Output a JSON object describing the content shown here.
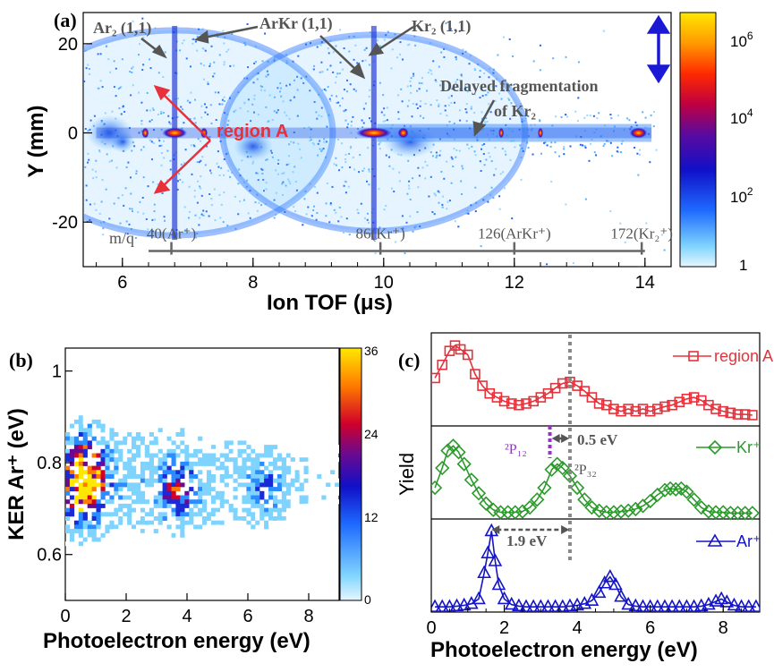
{
  "chart_data": [
    {
      "id": "a",
      "type": "heatmap",
      "panel_label": "(a)",
      "xlabel": "Ion TOF (μs)",
      "ylabel": "Y (mm)",
      "xlim": [
        5.4,
        14.4
      ],
      "ylim": [
        -30,
        27
      ],
      "xticks": [
        "6",
        "8",
        "10",
        "12",
        "14"
      ],
      "yticks": [
        "20",
        "0",
        "-20"
      ],
      "colorbar": {
        "scale": "log",
        "range": [
          1,
          5000000
        ],
        "ticks": [
          "1",
          "10^2",
          "10^4",
          "10^6"
        ]
      },
      "annotations": {
        "ar2": "Ar₂ (1,1)",
        "arkr": "ArKr (1,1)",
        "kr2": "Kr₂ (1,1)",
        "delayed_1": "Delayed fragmentation",
        "delayed_2": "of Kr₂",
        "region": "region A"
      },
      "mq_scale": {
        "prefix": "m/q",
        "entries": [
          {
            "mass": 40,
            "label": "40(Ar⁺)",
            "tof": 6.75
          },
          {
            "mass": 86,
            "label": "86(Kr⁺)",
            "tof": 9.95
          },
          {
            "mass": 126,
            "label": "126(ArKr⁺)",
            "tof": 12.0
          },
          {
            "mass": 172,
            "label": "172(Kr₂⁺)",
            "tof": 13.95
          }
        ]
      },
      "features": [
        {
          "name": "Ar2 ring",
          "center_tof": 6.8,
          "radius_mm": 23
        },
        {
          "name": "Kr2/ArKr ring",
          "center_tof": 9.85,
          "radius_mm": 22
        },
        {
          "name": "Ar+ line",
          "tof": 6.8
        },
        {
          "name": "Kr+ line",
          "tof": 9.85
        },
        {
          "name": "delayed fragmentation tail",
          "tof_range": [
            9.9,
            14.1
          ]
        }
      ]
    },
    {
      "id": "b",
      "type": "heatmap",
      "panel_label": "(b)",
      "xlabel": "Photoelectron energy (eV)",
      "ylabel": "KER Ar⁺ (eV)",
      "xlim": [
        0,
        9
      ],
      "ylim": [
        0.5,
        1.05
      ],
      "xticks": [
        "0",
        "2",
        "4",
        "6",
        "8"
      ],
      "yticks": [
        "1",
        "0.8",
        "0.6"
      ],
      "colorbar": {
        "scale": "linear",
        "range": [
          0,
          36
        ],
        "ticks": [
          "0",
          "12",
          "24",
          "36"
        ]
      },
      "hotspots": [
        {
          "x": 0.55,
          "y": 0.74,
          "value": 36
        },
        {
          "x": 0.75,
          "y": 0.8,
          "value": 22
        },
        {
          "x": 3.7,
          "y": 0.74,
          "value": 18
        },
        {
          "x": 6.6,
          "y": 0.75,
          "value": 10
        }
      ]
    },
    {
      "id": "c",
      "type": "line",
      "panel_label": "(c)",
      "xlabel": "Photoelectron energy (eV)",
      "ylabel": "Yield",
      "xlim": [
        0,
        9
      ],
      "xticks": [
        "0",
        "2",
        "4",
        "6",
        "8"
      ],
      "series": [
        {
          "name": "region A",
          "color": "#e8303a",
          "marker": "square",
          "x": [
            0.1,
            0.3,
            0.5,
            0.65,
            0.8,
            1.0,
            1.2,
            1.4,
            1.6,
            1.8,
            2.0,
            2.2,
            2.4,
            2.6,
            2.8,
            3.0,
            3.2,
            3.4,
            3.6,
            3.8,
            4.0,
            4.2,
            4.4,
            4.6,
            4.8,
            5.0,
            5.2,
            5.4,
            5.6,
            5.8,
            6.0,
            6.2,
            6.4,
            6.6,
            6.8,
            7.0,
            7.2,
            7.4,
            7.6,
            7.8,
            8.0,
            8.2,
            8.4,
            8.6,
            8.8
          ],
          "y": [
            0.55,
            0.72,
            0.9,
            0.97,
            0.92,
            0.85,
            0.6,
            0.45,
            0.35,
            0.3,
            0.25,
            0.22,
            0.2,
            0.22,
            0.25,
            0.3,
            0.35,
            0.42,
            0.48,
            0.5,
            0.45,
            0.38,
            0.3,
            0.22,
            0.2,
            0.15,
            0.12,
            0.15,
            0.12,
            0.15,
            0.12,
            0.15,
            0.18,
            0.2,
            0.24,
            0.28,
            0.3,
            0.26,
            0.2,
            0.15,
            0.12,
            0.1,
            0.08,
            0.08,
            0.07
          ]
        },
        {
          "name": "Kr⁺",
          "color": "#2a9a2a",
          "marker": "diamond",
          "x": [
            0.1,
            0.3,
            0.45,
            0.6,
            0.75,
            0.9,
            1.1,
            1.3,
            1.5,
            1.7,
            1.9,
            2.1,
            2.3,
            2.5,
            2.7,
            2.9,
            3.1,
            3.3,
            3.45,
            3.6,
            3.8,
            4.0,
            4.2,
            4.4,
            4.6,
            4.8,
            5.0,
            5.2,
            5.4,
            5.6,
            5.8,
            6.0,
            6.2,
            6.4,
            6.55,
            6.7,
            6.85,
            7.0,
            7.2,
            7.4,
            7.6,
            7.8,
            8.0,
            8.2,
            8.4,
            8.6,
            8.8
          ],
          "y": [
            0.35,
            0.6,
            0.82,
            0.88,
            0.8,
            0.65,
            0.45,
            0.28,
            0.15,
            0.07,
            0.04,
            0.04,
            0.04,
            0.05,
            0.1,
            0.2,
            0.35,
            0.58,
            0.65,
            0.6,
            0.5,
            0.35,
            0.2,
            0.1,
            0.06,
            0.04,
            0.04,
            0.05,
            0.06,
            0.08,
            0.12,
            0.18,
            0.26,
            0.32,
            0.34,
            0.33,
            0.34,
            0.3,
            0.2,
            0.1,
            0.05,
            0.04,
            0.04,
            0.03,
            0.03,
            0.03,
            0.03
          ]
        },
        {
          "name": "Ar⁺",
          "color": "#1414c8",
          "marker": "triangle",
          "x": [
            0.1,
            0.3,
            0.5,
            0.7,
            0.9,
            1.1,
            1.3,
            1.45,
            1.55,
            1.65,
            1.75,
            1.85,
            2.0,
            2.2,
            2.4,
            2.6,
            2.8,
            3.0,
            3.2,
            3.4,
            3.6,
            3.8,
            4.0,
            4.2,
            4.4,
            4.6,
            4.75,
            4.9,
            5.05,
            5.2,
            5.4,
            5.6,
            5.8,
            6.0,
            6.2,
            6.4,
            6.6,
            6.8,
            7.0,
            7.2,
            7.4,
            7.6,
            7.8,
            7.95,
            8.1,
            8.3,
            8.5,
            8.7,
            8.9
          ],
          "y": [
            0.02,
            0.02,
            0.02,
            0.03,
            0.04,
            0.06,
            0.12,
            0.45,
            0.7,
            0.98,
            0.6,
            0.3,
            0.12,
            0.05,
            0.03,
            0.02,
            0.02,
            0.02,
            0.02,
            0.02,
            0.02,
            0.03,
            0.04,
            0.06,
            0.1,
            0.2,
            0.32,
            0.4,
            0.3,
            0.15,
            0.05,
            0.03,
            0.02,
            0.02,
            0.02,
            0.02,
            0.02,
            0.02,
            0.02,
            0.02,
            0.03,
            0.05,
            0.09,
            0.12,
            0.08,
            0.04,
            0.02,
            0.02,
            0.02
          ]
        }
      ],
      "annotations": {
        "p12": "²P₁₂",
        "p32": "²P₃₂",
        "gap_05": "0.5 eV",
        "gap_19": "1.9 eV"
      },
      "reference_lines": [
        {
          "x": 3.8,
          "style": "dotted",
          "color": "#888888"
        },
        {
          "x": 3.25,
          "style": "dotted",
          "color": "#9932cc"
        }
      ]
    }
  ]
}
